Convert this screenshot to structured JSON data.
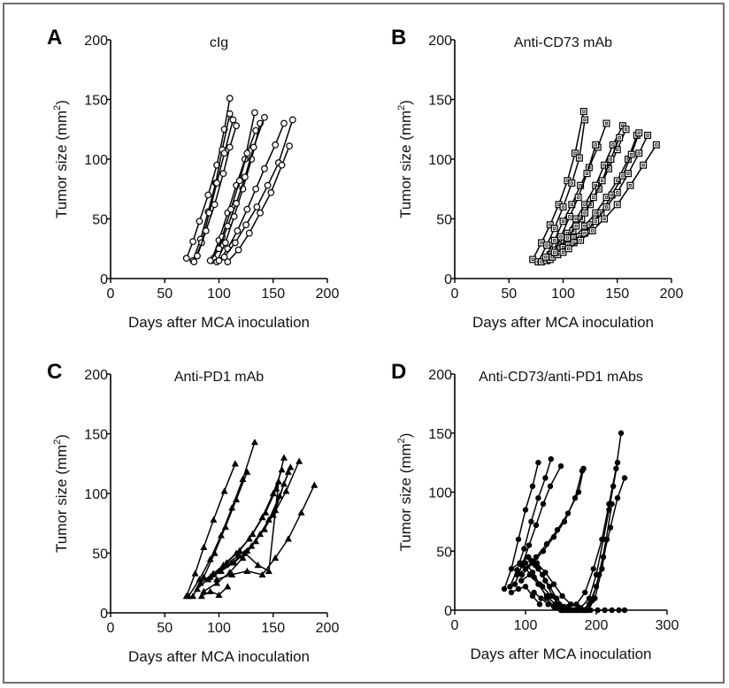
{
  "chart_data": [
    {
      "type": "line",
      "letter": "A",
      "title": "cIg",
      "xlabel": "Days after MCA inoculation",
      "ylabel_main": "Tumor size (mm",
      "ylabel_sup": "2",
      "ylabel_close": ")",
      "xlim": [
        0,
        200
      ],
      "ylim": [
        0,
        200
      ],
      "xticks": [
        "0",
        "50",
        "100",
        "150",
        "200"
      ],
      "yticks": [
        "0",
        "50",
        "100",
        "150",
        "200"
      ],
      "marker": "open-circle",
      "series": [
        {
          "x": [
            70,
            76,
            82,
            90,
            98,
            105,
            110
          ],
          "y": [
            17,
            31,
            48,
            70,
            95,
            125,
            151
          ]
        },
        {
          "x": [
            76,
            83,
            90,
            97,
            103,
            110
          ],
          "y": [
            15,
            33,
            56,
            80,
            108,
            138
          ]
        },
        {
          "x": [
            77,
            84,
            91,
            98,
            105,
            113
          ],
          "y": [
            14,
            30,
            55,
            80,
            105,
            133
          ]
        },
        {
          "x": [
            80,
            88,
            96,
            104,
            110,
            116
          ],
          "y": [
            19,
            40,
            62,
            88,
            110,
            128
          ]
        },
        {
          "x": [
            93,
            100,
            108,
            116,
            124,
            133
          ],
          "y": [
            15,
            32,
            55,
            78,
            100,
            139
          ]
        },
        {
          "x": [
            95,
            103,
            111,
            119,
            126,
            134
          ],
          "y": [
            17,
            35,
            58,
            82,
            105,
            124
          ]
        },
        {
          "x": [
            98,
            106,
            114,
            122,
            130,
            138
          ],
          "y": [
            14,
            30,
            52,
            75,
            100,
            130
          ]
        },
        {
          "x": [
            92,
            100,
            108,
            116,
            124,
            132,
            142
          ],
          "y": [
            15,
            25,
            44,
            63,
            85,
            110,
            135
          ]
        },
        {
          "x": [
            100,
            108,
            117,
            126,
            134,
            142,
            152,
            160
          ],
          "y": [
            15,
            25,
            40,
            58,
            75,
            92,
            112,
            130
          ]
        },
        {
          "x": [
            105,
            115,
            125,
            135,
            145,
            155,
            168
          ],
          "y": [
            18,
            30,
            45,
            60,
            78,
            97,
            133
          ]
        },
        {
          "x": [
            108,
            118,
            128,
            138,
            148,
            158,
            165
          ],
          "y": [
            14,
            24,
            38,
            55,
            72,
            95,
            111
          ]
        }
      ]
    },
    {
      "type": "line",
      "letter": "B",
      "title": "Anti-CD73 mAb",
      "xlabel": "Days after MCA inoculation",
      "ylabel_main": "Tumor size (mm",
      "ylabel_sup": "2",
      "ylabel_close": ")",
      "xlim": [
        0,
        200
      ],
      "ylim": [
        0,
        200
      ],
      "xticks": [
        "0",
        "50",
        "100",
        "150",
        "200"
      ],
      "yticks": [
        "0",
        "50",
        "100",
        "150",
        "200"
      ],
      "marker": "open-square",
      "series": [
        {
          "x": [
            72,
            80,
            88,
            96,
            104,
            111,
            119
          ],
          "y": [
            16,
            30,
            45,
            62,
            82,
            105,
            140
          ]
        },
        {
          "x": [
            77,
            85,
            92,
            100,
            108,
            115,
            120
          ],
          "y": [
            14,
            28,
            42,
            60,
            80,
            101,
            133
          ]
        },
        {
          "x": [
            80,
            88,
            96,
            104,
            112,
            120,
            130,
            138,
            146,
            155
          ],
          "y": [
            14,
            20,
            28,
            38,
            50,
            62,
            78,
            95,
            112,
            128
          ]
        },
        {
          "x": [
            85,
            93,
            101,
            109,
            117,
            125,
            133,
            142,
            150,
            158
          ],
          "y": [
            15,
            24,
            32,
            40,
            50,
            62,
            75,
            92,
            108,
            125
          ]
        },
        {
          "x": [
            88,
            96,
            104,
            112,
            120,
            128,
            136,
            144,
            152
          ],
          "y": [
            16,
            25,
            34,
            44,
            55,
            68,
            82,
            100,
            118
          ]
        },
        {
          "x": [
            90,
            100,
            110,
            120,
            130,
            140,
            150,
            160,
            168
          ],
          "y": [
            18,
            26,
            34,
            44,
            55,
            68,
            82,
            100,
            120
          ]
        },
        {
          "x": [
            95,
            105,
            115,
            125,
            135,
            145,
            155,
            163,
            170
          ],
          "y": [
            20,
            28,
            35,
            45,
            55,
            70,
            86,
            104,
            122
          ]
        },
        {
          "x": [
            100,
            110,
            120,
            130,
            140,
            150,
            160,
            170,
            178
          ],
          "y": [
            22,
            30,
            38,
            48,
            60,
            72,
            88,
            105,
            120
          ]
        },
        {
          "x": [
            105,
            116,
            127,
            138,
            150,
            162,
            174,
            186
          ],
          "y": [
            25,
            32,
            40,
            50,
            62,
            78,
            95,
            112
          ]
        },
        {
          "x": [
            84,
            92,
            100,
            108,
            116,
            124,
            132,
            140
          ],
          "y": [
            18,
            32,
            48,
            62,
            78,
            93,
            110,
            130
          ]
        },
        {
          "x": [
            92,
            98,
            106,
            114,
            122,
            130
          ],
          "y": [
            22,
            35,
            52,
            68,
            88,
            112
          ]
        }
      ]
    },
    {
      "type": "line",
      "letter": "C",
      "title": "Anti-PD1 mAb",
      "xlabel": "Days after MCA inoculation",
      "ylabel_main": "Tumor size (mm",
      "ylabel_sup": "2",
      "ylabel_close": ")",
      "xlim": [
        0,
        200
      ],
      "ylim": [
        0,
        200
      ],
      "xticks": [
        "0",
        "50",
        "100",
        "150",
        "200"
      ],
      "yticks": [
        "0",
        "50",
        "100",
        "150",
        "200"
      ],
      "marker": "filled-triangle",
      "series": [
        {
          "x": [
            70,
            78,
            86,
            95,
            105,
            115
          ],
          "y": [
            14,
            33,
            55,
            78,
            102,
            125
          ]
        },
        {
          "x": [
            72,
            82,
            92,
            102,
            112,
            122,
            133
          ],
          "y": [
            14,
            28,
            45,
            65,
            88,
            112,
            143
          ]
        },
        {
          "x": [
            76,
            86,
            96,
            106,
            116,
            126
          ],
          "y": [
            14,
            30,
            50,
            72,
            95,
            118
          ]
        },
        {
          "x": [
            80,
            92,
            104,
            116,
            128,
            140,
            150,
            158
          ],
          "y": [
            20,
            30,
            40,
            50,
            62,
            80,
            100,
            120
          ]
        },
        {
          "x": [
            83,
            95,
            107,
            119,
            131,
            143,
            153,
            160
          ],
          "y": [
            25,
            33,
            42,
            52,
            66,
            84,
            104,
            130
          ]
        },
        {
          "x": [
            86,
            98,
            110,
            122,
            134,
            146,
            156,
            164
          ],
          "y": [
            18,
            25,
            34,
            46,
            60,
            78,
            98,
            118
          ]
        },
        {
          "x": [
            90,
            102,
            114,
            126,
            138,
            150,
            162,
            174
          ],
          "y": [
            28,
            35,
            42,
            52,
            66,
            82,
            102,
            127
          ]
        },
        {
          "x": [
            94,
            106,
            118,
            130,
            142,
            152,
            160,
            166
          ],
          "y": [
            32,
            40,
            48,
            56,
            70,
            86,
            108,
            122
          ]
        },
        {
          "x": [
            98,
            112,
            126,
            140,
            152,
            164,
            176,
            188
          ],
          "y": [
            28,
            32,
            35,
            32,
            46,
            62,
            84,
            107
          ]
        },
        {
          "x": [
            100,
            112,
            124,
            136,
            146,
            155
          ],
          "y": [
            35,
            42,
            50,
            40,
            35,
            110
          ]
        },
        {
          "x": [
            84,
            92,
            100,
            108
          ],
          "y": [
            14,
            18,
            15,
            22
          ]
        }
      ]
    },
    {
      "type": "line",
      "letter": "D",
      "title": "Anti-CD73/anti-PD1 mAbs",
      "xlabel": "Days after MCA inoculation",
      "ylabel_main": "Tumor size (mm",
      "ylabel_sup": "2",
      "ylabel_close": ")",
      "xlim": [
        0,
        300
      ],
      "ylim": [
        0,
        200
      ],
      "xticks": [
        "0",
        "100",
        "200",
        "300"
      ],
      "yticks": [
        "0",
        "50",
        "100",
        "150",
        "200"
      ],
      "marker": "filled-circle",
      "series": [
        {
          "x": [
            70,
            80,
            90,
            100,
            110,
            118
          ],
          "y": [
            18,
            35,
            60,
            85,
            105,
            125
          ]
        },
        {
          "x": [
            78,
            88,
            98,
            108,
            118,
            128,
            136
          ],
          "y": [
            20,
            34,
            52,
            75,
            95,
            112,
            128
          ]
        },
        {
          "x": [
            85,
            95,
            105,
            115,
            125,
            135,
            150
          ],
          "y": [
            22,
            38,
            55,
            72,
            90,
            105,
            122
          ]
        },
        {
          "x": [
            95,
            110,
            125,
            140,
            155,
            170,
            180
          ],
          "y": [
            30,
            40,
            50,
            62,
            75,
            95,
            118
          ]
        },
        {
          "x": [
            100,
            115,
            130,
            145,
            160,
            175,
            182
          ],
          "y": [
            35,
            45,
            56,
            68,
            82,
            100,
            120
          ]
        },
        {
          "x": [
            80,
            92,
            104,
            116,
            128,
            140,
            152,
            164,
            176,
            186
          ],
          "y": [
            35,
            40,
            45,
            40,
            32,
            22,
            12,
            5,
            2,
            0
          ]
        },
        {
          "x": [
            88,
            100,
            112,
            124,
            136,
            148,
            160,
            172,
            184,
            196,
            208,
            218,
            228,
            235
          ],
          "y": [
            30,
            35,
            28,
            20,
            12,
            5,
            3,
            5,
            15,
            35,
            60,
            90,
            120,
            150
          ]
        },
        {
          "x": [
            94,
            106,
            118,
            130,
            142,
            154,
            166,
            178,
            190,
            200,
            210,
            218,
            224,
            230
          ],
          "y": [
            25,
            30,
            22,
            12,
            5,
            0,
            0,
            2,
            10,
            30,
            60,
            85,
            105,
            125
          ]
        },
        {
          "x": [
            100,
            110,
            120,
            130,
            140,
            150,
            160,
            170,
            180,
            190,
            200,
            210,
            220,
            230,
            240
          ],
          "y": [
            40,
            32,
            22,
            10,
            3,
            0,
            0,
            0,
            0,
            5,
            20,
            45,
            70,
            95,
            112
          ]
        },
        {
          "x": [
            104,
            114,
            124,
            134,
            144,
            154,
            164,
            174,
            184,
            194,
            204,
            214,
            222
          ],
          "y": [
            45,
            38,
            30,
            20,
            10,
            3,
            0,
            0,
            0,
            8,
            30,
            60,
            90
          ]
        },
        {
          "x": [
            108,
            118,
            128,
            138,
            148,
            158,
            168,
            178,
            188,
            198,
            208,
            215
          ],
          "y": [
            42,
            35,
            25,
            12,
            4,
            0,
            0,
            0,
            0,
            10,
            35,
            60
          ]
        },
        {
          "x": [
            112,
            122,
            132,
            142,
            152,
            162,
            172,
            182,
            192,
            202,
            212,
            222,
            232,
            240
          ],
          "y": [
            15,
            10,
            5,
            2,
            0,
            0,
            0,
            0,
            0,
            0,
            0,
            0,
            0,
            0
          ]
        },
        {
          "x": [
            80,
            90,
            100,
            110,
            120
          ],
          "y": [
            15,
            18,
            20,
            12,
            5
          ]
        }
      ]
    }
  ]
}
